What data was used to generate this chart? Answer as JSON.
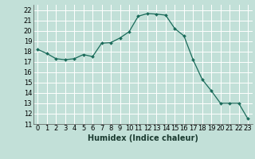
{
  "x": [
    0,
    1,
    2,
    3,
    4,
    5,
    6,
    7,
    8,
    9,
    10,
    11,
    12,
    13,
    14,
    15,
    16,
    17,
    18,
    19,
    20,
    21,
    22,
    23
  ],
  "y": [
    18.2,
    17.8,
    17.3,
    17.2,
    17.3,
    17.7,
    17.5,
    18.8,
    18.85,
    19.3,
    19.9,
    21.4,
    21.65,
    21.6,
    21.5,
    20.2,
    19.5,
    17.2,
    15.3,
    14.2,
    13.0,
    13.0,
    13.0,
    11.5
  ],
  "line_color": "#1a6b5a",
  "marker_color": "#1a6b5a",
  "bg_color": "#c2e0d8",
  "grid_color": "#ffffff",
  "xlabel": "Humidex (Indice chaleur)",
  "ylabel_ticks": [
    11,
    12,
    13,
    14,
    15,
    16,
    17,
    18,
    19,
    20,
    21,
    22
  ],
  "xlim": [
    -0.5,
    23.5
  ],
  "ylim": [
    11,
    22.5
  ],
  "xlabel_fontsize": 7.0,
  "tick_fontsize": 6.0
}
